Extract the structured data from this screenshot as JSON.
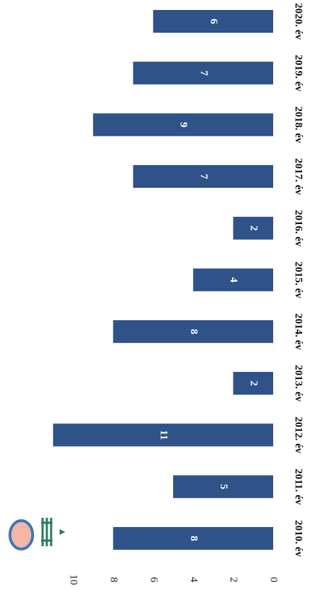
{
  "chart_data": {
    "type": "bar",
    "categories": [
      "2010. év",
      "2011. év",
      "2012. év",
      "2013. év",
      "2014. év",
      "2015. év",
      "2016. év",
      "2017. év",
      "2018. év",
      "2019. év",
      "2020. év"
    ],
    "values": [
      8,
      5,
      11,
      2,
      8,
      4,
      2,
      7,
      9,
      7,
      6
    ],
    "color": "#2f5289",
    "xlim": [
      0,
      10
    ],
    "xticks": [
      0,
      2,
      4,
      6,
      8,
      10
    ]
  }
}
